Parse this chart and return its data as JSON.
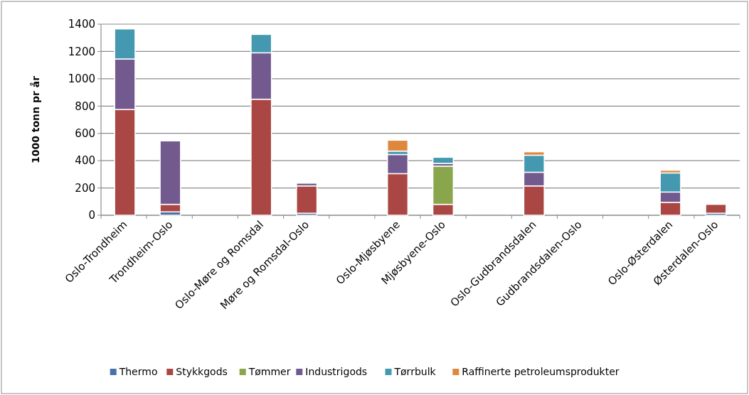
{
  "chart_data": {
    "type": "bar",
    "stacked": true,
    "ylabel": "1000 tonn pr år",
    "categories": [
      "Oslo-Trondheim",
      "Trondheim-Oslo",
      null,
      "Oslo-Møre og Romsdal",
      "Møre og Romsdal-Oslo",
      null,
      "Oslo-Mjøsbyene",
      "Mjøsbyene-Oslo",
      null,
      "Oslo-Gudbrandsdalen",
      "Gudbrandsdalen-Oslo",
      null,
      "Oslo-Østerdalen",
      "Østerdalen-Oslo"
    ],
    "series": [
      {
        "name": "Thermo",
        "color": "#4a72a8",
        "values": [
          null,
          25,
          null,
          null,
          15,
          null,
          null,
          null,
          null,
          null,
          null,
          null,
          null,
          15
        ]
      },
      {
        "name": "Stykkgods",
        "color": "#aa4644",
        "values": [
          775,
          55,
          null,
          850,
          200,
          null,
          305,
          80,
          null,
          215,
          null,
          null,
          95,
          65
        ]
      },
      {
        "name": "Tømmer",
        "color": "#8aa64c",
        "values": [
          null,
          null,
          null,
          null,
          null,
          null,
          null,
          280,
          null,
          null,
          null,
          null,
          null,
          null
        ]
      },
      {
        "name": "Industrigods",
        "color": "#725a8e",
        "values": [
          370,
          465,
          null,
          340,
          20,
          null,
          140,
          20,
          null,
          100,
          null,
          null,
          75,
          null
        ]
      },
      {
        "name": "Tørrbulk",
        "color": "#4499b0",
        "values": [
          220,
          null,
          null,
          135,
          null,
          null,
          25,
          45,
          null,
          125,
          null,
          null,
          140,
          null
        ]
      },
      {
        "name": "Raffinerte petroleumsprodukter",
        "color": "#e0873e",
        "values": [
          null,
          null,
          null,
          null,
          null,
          null,
          80,
          null,
          null,
          25,
          null,
          null,
          20,
          null
        ]
      }
    ],
    "ylim": [
      0,
      1400
    ],
    "yticks": [
      0,
      200,
      400,
      600,
      800,
      1000,
      1200,
      1400
    ],
    "grid": "y",
    "legend": "bottom"
  }
}
